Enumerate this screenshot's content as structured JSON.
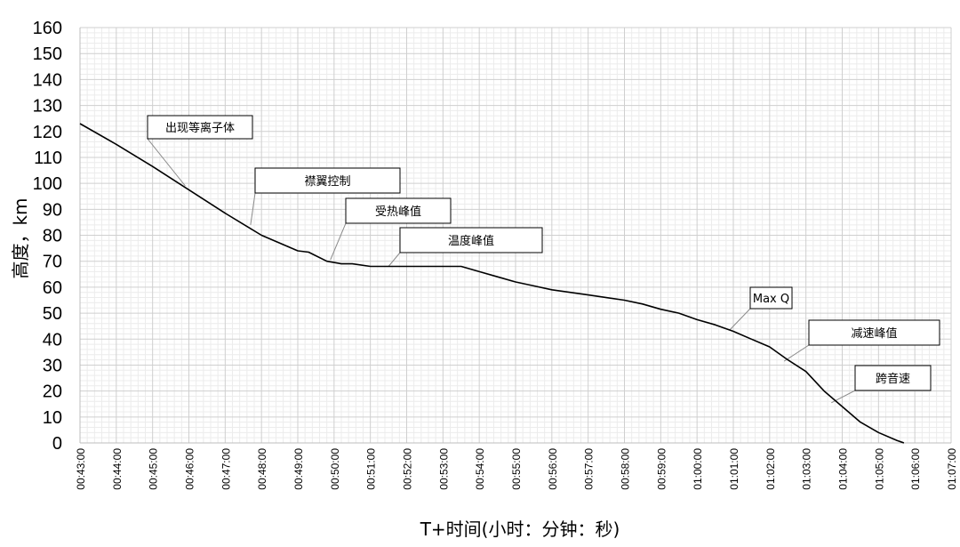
{
  "chart_data": {
    "type": "line",
    "title": "",
    "xlabel": "T+时间(小时：分钟：秒)",
    "ylabel": "高度，km",
    "ylim": [
      0,
      160
    ],
    "y_ticks": [
      0,
      10,
      20,
      30,
      40,
      50,
      60,
      70,
      80,
      90,
      100,
      110,
      120,
      130,
      140,
      150,
      160
    ],
    "x_range_min": [
      43,
      67
    ],
    "x_ticks": [
      "00:43:00",
      "00:44:00",
      "00:45:00",
      "00:46:00",
      "00:47:00",
      "00:48:00",
      "00:49:00",
      "00:50:00",
      "00:51:00",
      "00:52:00",
      "00:53:00",
      "00:54:00",
      "00:55:00",
      "00:56:00",
      "00:57:00",
      "00:58:00",
      "00:59:00",
      "01:00:00",
      "01:01:00",
      "01:02:00",
      "01:03:00",
      "01:04:00",
      "01:05:00",
      "01:06:00",
      "01:07:00"
    ],
    "grid": true,
    "series": [
      {
        "name": "",
        "x": [
          43,
          44,
          45,
          46,
          47,
          48,
          49,
          49.3,
          49.8,
          50.2,
          50.5,
          51,
          51.5,
          52,
          52.5,
          53,
          53.5,
          54,
          54.5,
          55,
          55.5,
          56,
          56.5,
          57,
          57.5,
          58,
          58.5,
          59,
          59.5,
          60,
          60.5,
          61,
          61.5,
          62,
          62.5,
          63,
          63.5,
          64,
          64.5,
          65,
          65.5,
          65.7
        ],
        "y": [
          123,
          115,
          106.5,
          97.5,
          88.5,
          80,
          74,
          73.5,
          70,
          69,
          69,
          68,
          68,
          68,
          68,
          68,
          68,
          66,
          64,
          62,
          60.5,
          59,
          58,
          57,
          56,
          55,
          53.5,
          51.5,
          50,
          47.5,
          45.5,
          43,
          40,
          37,
          32,
          27.5,
          20,
          14,
          8,
          4,
          1,
          0
        ]
      }
    ],
    "annotations": [
      {
        "text": "出现等离子体",
        "x": 45.9,
        "y": 99
      },
      {
        "text": "襟翼控制",
        "x": 47.7,
        "y": 84
      },
      {
        "text": "受热峰值",
        "x": 49.9,
        "y": 70.5
      },
      {
        "text": "温度峰值",
        "x": 51.5,
        "y": 68
      },
      {
        "text": "Max Q",
        "x": 60.9,
        "y": 43.5
      },
      {
        "text": "减速峰值",
        "x": 62.4,
        "y": 31.5
      },
      {
        "text": "跨音速",
        "x": 63.7,
        "y": 15.5
      }
    ]
  }
}
